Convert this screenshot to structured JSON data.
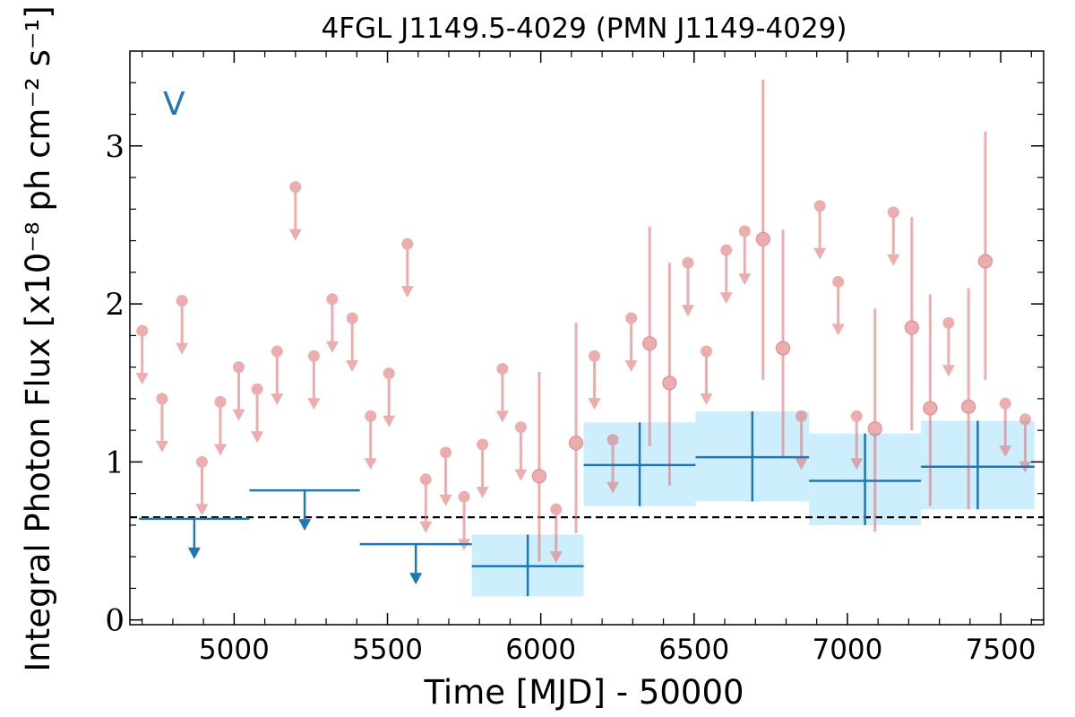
{
  "chart_data": {
    "type": "scatter",
    "title": "4FGL J1149.5-4029 (PMN J1149-4029)",
    "xlabel": "Time [MJD] - 50000",
    "ylabel": "Integral Photon Flux [x10⁻⁸ ph cm⁻² s⁻¹]",
    "panel_label": "V",
    "xlim": [
      4660,
      7640
    ],
    "ylim": [
      -0.03,
      3.6
    ],
    "x_ticks": [
      5000,
      5500,
      6000,
      6500,
      7000,
      7500
    ],
    "x_tick_labels": [
      "5000",
      "5500",
      "6000",
      "6500",
      "7000",
      "7500"
    ],
    "y_ticks": [
      0,
      1,
      2,
      3
    ],
    "y_tick_labels": [
      "0",
      "1",
      "2",
      "3"
    ],
    "grid": false,
    "reference_level": 0.65,
    "colors": {
      "short_bins": "#e07b7e",
      "long_bins": "#1f77b4",
      "long_bins_band": "#cdeefc",
      "reference_line": "#000000"
    },
    "series": [
      {
        "bin": "short",
        "upper_limits": [
          {
            "x": 4700,
            "y": 1.83
          },
          {
            "x": 4765,
            "y": 1.4
          },
          {
            "x": 4830,
            "y": 2.02
          },
          {
            "x": 4895,
            "y": 1.0
          },
          {
            "x": 4955,
            "y": 1.38
          },
          {
            "x": 5015,
            "y": 1.6
          },
          {
            "x": 5075,
            "y": 1.46
          },
          {
            "x": 5140,
            "y": 1.7
          },
          {
            "x": 5200,
            "y": 2.74
          },
          {
            "x": 5260,
            "y": 1.67
          },
          {
            "x": 5320,
            "y": 2.03
          },
          {
            "x": 5385,
            "y": 1.91
          },
          {
            "x": 5445,
            "y": 1.29
          },
          {
            "x": 5505,
            "y": 1.56
          },
          {
            "x": 5565,
            "y": 2.38
          },
          {
            "x": 5625,
            "y": 0.89
          },
          {
            "x": 5690,
            "y": 1.06
          },
          {
            "x": 5750,
            "y": 0.78
          },
          {
            "x": 5810,
            "y": 1.11
          },
          {
            "x": 5875,
            "y": 1.59
          },
          {
            "x": 5935,
            "y": 1.22
          },
          {
            "x": 6050,
            "y": 0.7
          },
          {
            "x": 6175,
            "y": 1.67
          },
          {
            "x": 6235,
            "y": 1.14
          },
          {
            "x": 6295,
            "y": 1.91
          },
          {
            "x": 6480,
            "y": 2.26
          },
          {
            "x": 6540,
            "y": 1.7
          },
          {
            "x": 6605,
            "y": 2.34
          },
          {
            "x": 6665,
            "y": 2.46
          },
          {
            "x": 6850,
            "y": 1.29
          },
          {
            "x": 6910,
            "y": 2.62
          },
          {
            "x": 6970,
            "y": 2.14
          },
          {
            "x": 7030,
            "y": 1.29
          },
          {
            "x": 7150,
            "y": 2.58
          },
          {
            "x": 7330,
            "y": 1.88
          },
          {
            "x": 7515,
            "y": 1.37
          },
          {
            "x": 7580,
            "y": 1.27
          }
        ],
        "detections": [
          {
            "x": 5995,
            "y": 0.91,
            "y_low": 0.37,
            "y_high": 1.57
          },
          {
            "x": 6115,
            "y": 1.12,
            "y_low": 0.55,
            "y_high": 1.88
          },
          {
            "x": 6355,
            "y": 1.75,
            "y_low": 1.1,
            "y_high": 2.49
          },
          {
            "x": 6420,
            "y": 1.5,
            "y_low": 0.85,
            "y_high": 2.26
          },
          {
            "x": 6725,
            "y": 2.41,
            "y_low": 1.52,
            "y_high": 3.42
          },
          {
            "x": 6790,
            "y": 1.72,
            "y_low": 1.03,
            "y_high": 2.47
          },
          {
            "x": 7090,
            "y": 1.21,
            "y_low": 0.56,
            "y_high": 1.97
          },
          {
            "x": 7210,
            "y": 1.85,
            "y_low": 1.2,
            "y_high": 2.55
          },
          {
            "x": 7270,
            "y": 1.34,
            "y_low": 0.72,
            "y_high": 2.06
          },
          {
            "x": 7395,
            "y": 1.35,
            "y_low": 0.7,
            "y_high": 2.1
          },
          {
            "x": 7450,
            "y": 2.27,
            "y_low": 1.52,
            "y_high": 3.09
          }
        ]
      },
      {
        "bin": "long",
        "upper_limits": [
          {
            "x_start": 4690,
            "x_end": 5050,
            "y": 0.64
          },
          {
            "x_start": 5050,
            "x_end": 5410,
            "y": 0.82
          },
          {
            "x_start": 5410,
            "x_end": 5775,
            "y": 0.48
          }
        ],
        "detections": [
          {
            "x_start": 5775,
            "x_end": 6140,
            "y": 0.34,
            "y_low": 0.15,
            "y_high": 0.54
          },
          {
            "x_start": 6140,
            "x_end": 6505,
            "y": 0.98,
            "y_low": 0.72,
            "y_high": 1.25
          },
          {
            "x_start": 6505,
            "x_end": 6875,
            "y": 1.03,
            "y_low": 0.75,
            "y_high": 1.32
          },
          {
            "x_start": 6875,
            "x_end": 7240,
            "y": 0.88,
            "y_low": 0.6,
            "y_high": 1.18
          },
          {
            "x_start": 7240,
            "x_end": 7610,
            "y": 0.97,
            "y_low": 0.7,
            "y_high": 1.26
          }
        ]
      }
    ]
  }
}
